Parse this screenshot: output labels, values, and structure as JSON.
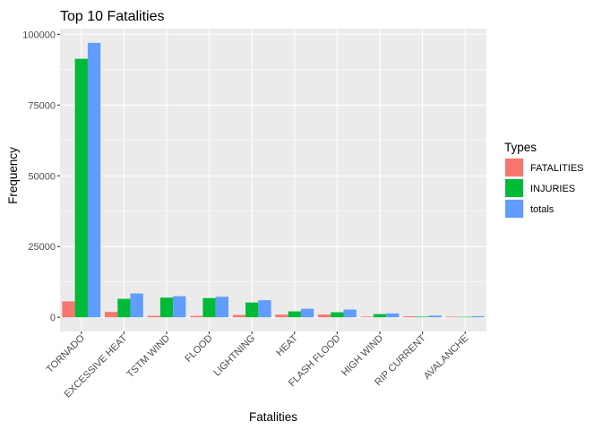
{
  "chart_data": {
    "type": "bar",
    "title": "Top 10 Fatalities",
    "xlabel": "Fatalities",
    "ylabel": "Frequency",
    "ylim": [
      -5000,
      102000
    ],
    "yticks": [
      0,
      25000,
      50000,
      75000,
      100000
    ],
    "ytick_labels": [
      "0",
      "25000",
      "50000",
      "75000",
      "100000"
    ],
    "categories": [
      "TORNADO",
      "EXCESSIVE HEAT",
      "TSTM WIND",
      "FLOOD",
      "LIGHTNING",
      "HEAT",
      "FLASH FLOOD",
      "HIGH WIND",
      "RIP CURRENT",
      "AVALANCHE"
    ],
    "legend": {
      "title": "Types",
      "position": "right"
    },
    "grid": true,
    "series": [
      {
        "name": "FATALITIES",
        "color": "#F8766D",
        "values": [
          5633,
          1903,
          504,
          470,
          816,
          937,
          978,
          248,
          368,
          224
        ]
      },
      {
        "name": "INJURIES",
        "color": "#00BA38",
        "values": [
          91346,
          6525,
          6957,
          6789,
          5230,
          2100,
          1777,
          1137,
          232,
          170
        ]
      },
      {
        "name": "totals",
        "color": "#619CFF",
        "values": [
          96979,
          8428,
          7461,
          7259,
          6046,
          3037,
          2755,
          1385,
          600,
          394
        ]
      }
    ]
  }
}
